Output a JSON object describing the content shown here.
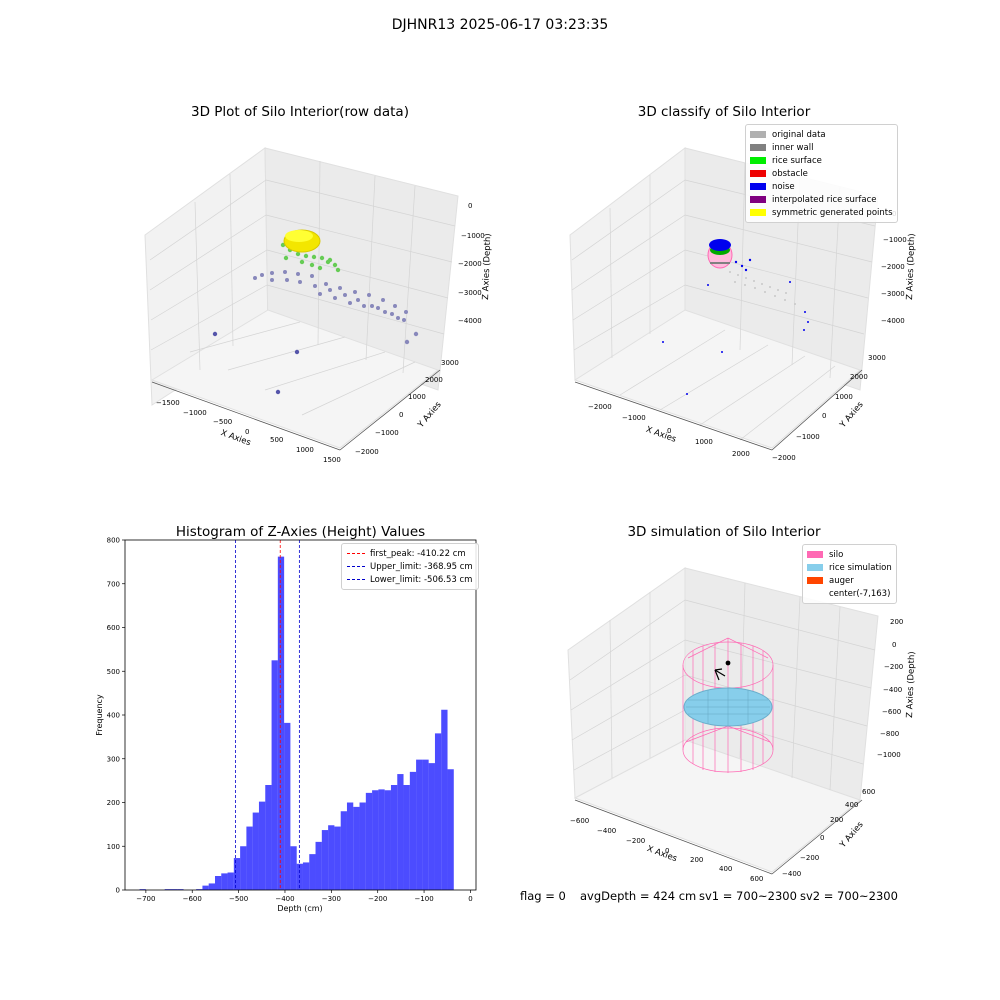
{
  "suptitle": "DJHNR13 2025-06-17 03:23:35",
  "panels": {
    "raw": {
      "title": "3D Plot of Silo Interior(row data)",
      "xlabel": "X Axies",
      "ylabel": "Y Axies",
      "zlabel": "Z Axies (Depth)",
      "xticks": [
        "−1500",
        "−1000",
        "−500",
        "0",
        "500",
        "1000",
        "1500"
      ],
      "yticks": [
        "−2000",
        "−1000",
        "0",
        "1000",
        "2000",
        "3000"
      ],
      "zticks": [
        "0",
        "−1000",
        "−2000",
        "−3000",
        "−4000"
      ]
    },
    "classify": {
      "title": "3D classify of Silo Interior",
      "xlabel": "X Axies",
      "ylabel": "Y Axies",
      "zlabel": "Z Axies (Depth)",
      "xticks": [
        "−2000",
        "−1000",
        "0",
        "1000",
        "2000"
      ],
      "yticks": [
        "−2000",
        "−1000",
        "0",
        "1000",
        "2000",
        "3000"
      ],
      "zticks": [
        "0",
        "−1000",
        "−2000",
        "−3000",
        "−4000"
      ],
      "legend": [
        {
          "label": "original data",
          "color": "#b0b0b0"
        },
        {
          "label": "inner wall",
          "color": "#808080"
        },
        {
          "label": "rice surface",
          "color": "#00ee00"
        },
        {
          "label": "obstacle",
          "color": "#ee0000"
        },
        {
          "label": "noise",
          "color": "#0000ee"
        },
        {
          "label": "interpolated rice surface",
          "color": "#800080"
        },
        {
          "label": "symmetric generated points",
          "color": "#ffff00"
        }
      ]
    },
    "simulation": {
      "title": "3D simulation of Silo Interior",
      "xlabel": "X Axies",
      "ylabel": "Y Axies",
      "zlabel": "Z Axies (Depth)",
      "xticks": [
        "−600",
        "−400",
        "−200",
        "0",
        "200",
        "400",
        "600"
      ],
      "yticks": [
        "−400",
        "−200",
        "0",
        "200",
        "400",
        "600"
      ],
      "zticks": [
        "200",
        "0",
        "−200",
        "−400",
        "−600",
        "−800",
        "−1000"
      ],
      "legend": [
        {
          "label": "silo",
          "color": "#ff69b4"
        },
        {
          "label": "rice simulation",
          "color": "#87ceeb"
        },
        {
          "label": "auger",
          "color": "#ff4500"
        },
        {
          "label": "center(-7,163)",
          "color": ""
        }
      ]
    }
  },
  "status": {
    "flag": "flag = 0",
    "avg_depth": "avgDepth = 424 cm",
    "sv1": "sv1 = 700~2300",
    "sv2": "sv2 = 700~2300"
  },
  "chart_data": [
    {
      "type": "histogram",
      "title": "Histogram of Z-Axies (Height) Values",
      "xlabel": "Depth (cm)",
      "ylabel": "Frequency",
      "xlim": [
        -745,
        12
      ],
      "ylim": [
        0,
        800
      ],
      "xticks": [
        -700,
        -600,
        -500,
        -400,
        -300,
        -200,
        -100,
        0
      ],
      "yticks": [
        0,
        100,
        200,
        300,
        400,
        500,
        600,
        700,
        800
      ],
      "bar_color": "#0000ff",
      "bins": [
        {
          "start": -713.6,
          "end": -700.0,
          "count": 2
        },
        {
          "start": -700.0,
          "end": -686.5,
          "count": 0
        },
        {
          "start": -686.5,
          "end": -672.9,
          "count": 0
        },
        {
          "start": -672.9,
          "end": -659.4,
          "count": 0
        },
        {
          "start": -659.4,
          "end": -645.8,
          "count": 2
        },
        {
          "start": -645.8,
          "end": -632.3,
          "count": 2
        },
        {
          "start": -632.3,
          "end": -618.7,
          "count": 2
        },
        {
          "start": -618.7,
          "end": -605.2,
          "count": 0
        },
        {
          "start": -605.2,
          "end": -591.6,
          "count": 0
        },
        {
          "start": -591.6,
          "end": -578.0,
          "count": 2
        },
        {
          "start": -578.0,
          "end": -564.5,
          "count": 10
        },
        {
          "start": -564.5,
          "end": -550.9,
          "count": 15
        },
        {
          "start": -550.9,
          "end": -537.4,
          "count": 32
        },
        {
          "start": -537.4,
          "end": -523.8,
          "count": 38
        },
        {
          "start": -523.8,
          "end": -510.3,
          "count": 40
        },
        {
          "start": -510.3,
          "end": -496.7,
          "count": 73
        },
        {
          "start": -496.7,
          "end": -483.2,
          "count": 100
        },
        {
          "start": -483.2,
          "end": -469.6,
          "count": 145
        },
        {
          "start": -469.6,
          "end": -456.1,
          "count": 177
        },
        {
          "start": -456.1,
          "end": -442.5,
          "count": 202
        },
        {
          "start": -442.5,
          "end": -428.9,
          "count": 240
        },
        {
          "start": -428.9,
          "end": -415.4,
          "count": 525
        },
        {
          "start": -415.4,
          "end": -401.8,
          "count": 762
        },
        {
          "start": -401.8,
          "end": -388.3,
          "count": 382
        },
        {
          "start": -388.3,
          "end": -374.7,
          "count": 100
        },
        {
          "start": -374.7,
          "end": -361.2,
          "count": 60
        },
        {
          "start": -361.2,
          "end": -347.6,
          "count": 63
        },
        {
          "start": -347.6,
          "end": -334.1,
          "count": 82
        },
        {
          "start": -334.1,
          "end": -320.5,
          "count": 110
        },
        {
          "start": -320.5,
          "end": -306.9,
          "count": 137
        },
        {
          "start": -306.9,
          "end": -293.4,
          "count": 148
        },
        {
          "start": -293.4,
          "end": -279.8,
          "count": 145
        },
        {
          "start": -279.8,
          "end": -266.3,
          "count": 180
        },
        {
          "start": -266.3,
          "end": -252.7,
          "count": 200
        },
        {
          "start": -252.7,
          "end": -239.2,
          "count": 190
        },
        {
          "start": -239.2,
          "end": -225.6,
          "count": 200
        },
        {
          "start": -225.6,
          "end": -212.1,
          "count": 222
        },
        {
          "start": -212.1,
          "end": -198.5,
          "count": 228
        },
        {
          "start": -198.5,
          "end": -185.0,
          "count": 230
        },
        {
          "start": -185.0,
          "end": -171.4,
          "count": 228
        },
        {
          "start": -171.4,
          "end": -157.8,
          "count": 240
        },
        {
          "start": -157.8,
          "end": -144.3,
          "count": 265
        },
        {
          "start": -144.3,
          "end": -130.7,
          "count": 240
        },
        {
          "start": -130.7,
          "end": -117.2,
          "count": 270
        },
        {
          "start": -117.2,
          "end": -103.6,
          "count": 298
        },
        {
          "start": -103.6,
          "end": -90.1,
          "count": 298
        },
        {
          "start": -90.1,
          "end": -76.5,
          "count": 290
        },
        {
          "start": -76.5,
          "end": -63.0,
          "count": 358
        },
        {
          "start": -63.0,
          "end": -49.4,
          "count": 412
        },
        {
          "start": -49.4,
          "end": -35.9,
          "count": 276
        }
      ],
      "vlines": [
        {
          "label": "first_peak: -410.22 cm",
          "x": -410.22,
          "color": "#ff0000"
        },
        {
          "label": "Upper_limit: -368.95 cm",
          "x": -368.95,
          "color": "#0000cc"
        },
        {
          "label": "Lower_limit: -506.53 cm",
          "x": -506.53,
          "color": "#0000cc"
        }
      ]
    }
  ]
}
